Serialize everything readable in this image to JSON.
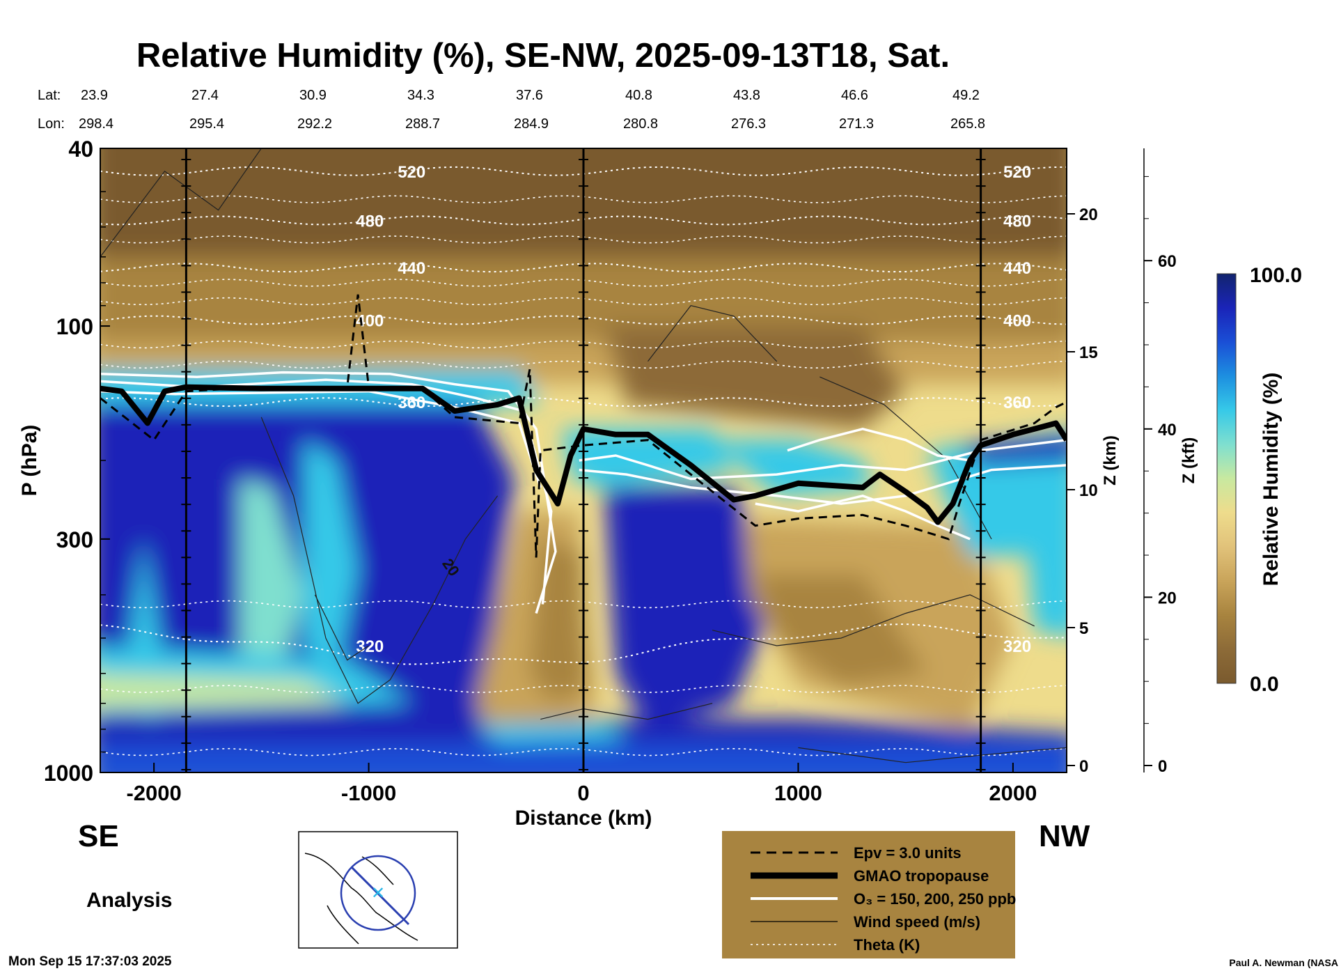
{
  "title": "Relative Humidity (%), SE-NW, 2025-09-13T18, Sat.",
  "lat_label": "Lat:",
  "lon_label": "Lon:",
  "lats": [
    "23.9",
    "27.4",
    "30.9",
    "34.3",
    "37.6",
    "40.8",
    "43.8",
    "46.6",
    "49.2"
  ],
  "lons": [
    "298.4",
    "295.4",
    "292.2",
    "288.7",
    "284.9",
    "280.8",
    "276.3",
    "271.3",
    "265.8"
  ],
  "direction_left": "SE",
  "direction_right": "NW",
  "analysis_label": "Analysis",
  "timestamp": "Mon Sep 15 17:37:03 2025",
  "credit": "Paul A. Newman (NASA",
  "legend": [
    {
      "label": "Epv = 3.0 units",
      "style": "dashed"
    },
    {
      "label": "GMAO tropopause",
      "style": "thick"
    },
    {
      "label": "O₃ = 150, 200, 250 ppb",
      "style": "white"
    },
    {
      "label": "Wind speed (m/s)",
      "style": "thin"
    },
    {
      "label": "Theta (K)",
      "style": "dotted"
    }
  ],
  "colorbar": {
    "title": "Relative Humidity (%)",
    "max_label": "100.0",
    "min_label": "0.0",
    "colors": [
      "#7a5a2e",
      "#8d6b38",
      "#a8843f",
      "#c9a45a",
      "#e1c27a",
      "#eedc8c",
      "#c8e9a0",
      "#7fdfcf",
      "#36c9e8",
      "#1d8fe0",
      "#1a4fd6",
      "#1a24b8",
      "#12246e"
    ]
  },
  "colors": {
    "legend_box": "#a88440",
    "dry": "#8d6b38",
    "moist": "#1a24b8"
  },
  "chart_data": {
    "type": "heatmap",
    "title": "Relative Humidity (%), SE-NW, 2025-09-13T18, Sat.",
    "xlabel": "Distance (km)",
    "ylabel": "P (hPa)",
    "ylabel_right": "Z (km)",
    "ylabel_far_right": "Z (kft)",
    "xlim": [
      -2250,
      2250
    ],
    "ylim": [
      1000,
      40
    ],
    "y_scale": "log",
    "x_ticks": [
      "-2000",
      "-1000",
      "0",
      "1000",
      "2000"
    ],
    "x_tick_values": [
      -2000,
      -1000,
      0,
      1000,
      2000
    ],
    "y_ticks": [
      "40",
      "100",
      "300",
      "1000"
    ],
    "y_tick_values": [
      40,
      100,
      300,
      1000
    ],
    "z_km_ticks": [
      "0",
      "5",
      "10",
      "15",
      "20"
    ],
    "z_km_values": [
      0,
      5,
      10,
      15,
      20
    ],
    "z_kft_ticks": [
      "0",
      "20",
      "40",
      "60"
    ],
    "z_kft_values": [
      0,
      20,
      40,
      60
    ],
    "colorbar_range": [
      0,
      100
    ],
    "vertical_markers_km": [
      -1850,
      0,
      1850
    ],
    "theta_contours": [
      {
        "label": "520",
        "p": 45
      },
      {
        "label": "480",
        "p": 58
      },
      {
        "label": "440",
        "p": 74
      },
      {
        "label": "400",
        "p": 97
      },
      {
        "label": "360",
        "p": 148
      },
      {
        "label": "320",
        "p": 520
      }
    ],
    "wind_label": "20",
    "tropopause": {
      "x": [
        -2250,
        -2150,
        -2030,
        -1950,
        -1850,
        -1500,
        -1000,
        -750,
        -600,
        -400,
        -300,
        -220,
        -120,
        -60,
        0,
        150,
        300,
        500,
        700,
        800,
        1000,
        1300,
        1380,
        1500,
        1600,
        1650,
        1720,
        1800,
        1850,
        2000,
        2100,
        2200,
        2250
      ],
      "p": [
        138,
        140,
        165,
        140,
        137,
        138,
        138,
        138,
        155,
        150,
        145,
        210,
        250,
        195,
        170,
        175,
        175,
        205,
        245,
        240,
        225,
        230,
        215,
        235,
        255,
        275,
        250,
        200,
        185,
        175,
        170,
        165,
        180
      ]
    },
    "epv": {
      "x": [
        -2250,
        -2000,
        -1850,
        -1500,
        -1100,
        -1050,
        -1000,
        -750,
        -600,
        -300,
        -250,
        -220,
        -200,
        0,
        300,
        500,
        800,
        1000,
        1300,
        1500,
        1700,
        1750,
        1850,
        2100,
        2200,
        2250
      ],
      "p": [
        145,
        180,
        140,
        137,
        137,
        85,
        137,
        138,
        160,
        165,
        125,
        330,
        190,
        185,
        180,
        215,
        280,
        270,
        265,
        280,
        300,
        250,
        180,
        165,
        152,
        148
      ]
    }
  }
}
